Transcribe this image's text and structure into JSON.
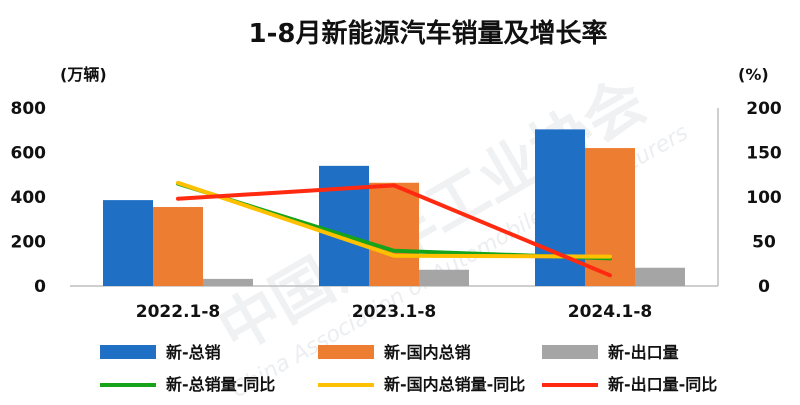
{
  "chart_data": {
    "type": "bar",
    "title": "1-8月新能源汽车销量及增长率",
    "ylabel_left": "(万辆)",
    "ylabel_right": "(%)",
    "ylim_left": [
      0,
      800
    ],
    "ylim_right": [
      0,
      200
    ],
    "yticks_left": [
      "0",
      "200",
      "400",
      "600",
      "800"
    ],
    "yticks_right": [
      "0",
      "50",
      "100",
      "150",
      "200"
    ],
    "categories": [
      "2022.1-8",
      "2023.1-8",
      "2024.1-8"
    ],
    "bar_series": [
      {
        "name": "新-总销",
        "color": "#1f6fc5",
        "values": [
          386,
          540,
          704
        ]
      },
      {
        "name": "新-国内总销",
        "color": "#ed7d31",
        "values": [
          355,
          464,
          620
        ]
      },
      {
        "name": "新-出口量",
        "color": "#a5a5a5",
        "values": [
          32,
          73,
          82
        ]
      }
    ],
    "line_series": [
      {
        "name": "新-总销量-同比",
        "color": "#17a31a",
        "values": [
          115,
          39.6,
          31
        ]
      },
      {
        "name": "新-国内总销量-同比",
        "color": "#ffc000",
        "values": [
          116,
          34,
          33
        ]
      },
      {
        "name": "新-出口量-同比",
        "color": "#ff2a0f",
        "values": [
          98,
          113,
          12
        ]
      }
    ],
    "grid": false,
    "legend_placement": "bottom"
  },
  "watermark": {
    "cn": "中国汽车工业协会",
    "en": "China Association of Automobile Manufacturers"
  }
}
